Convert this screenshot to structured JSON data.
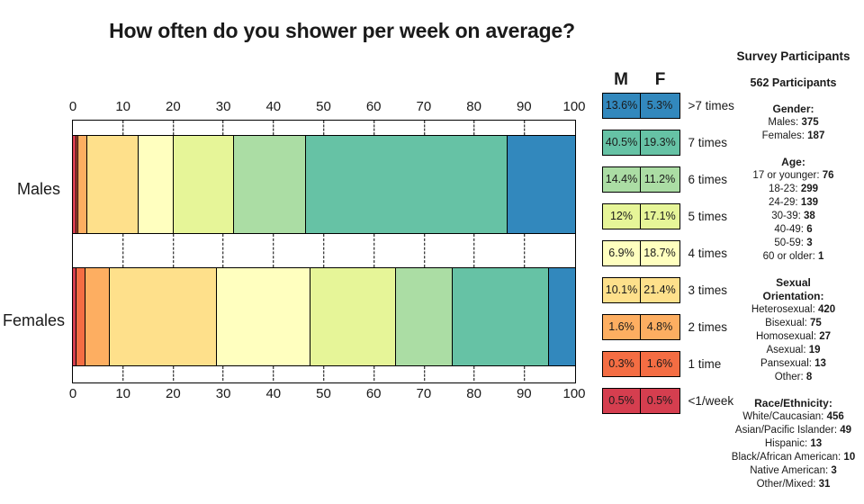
{
  "chart_data": {
    "type": "bar",
    "stacked": true,
    "orientation": "horizontal",
    "title": "How often do you shower per week on average?",
    "categories": [
      "Males",
      "Females"
    ],
    "x_ticks": [
      0,
      10,
      20,
      30,
      40,
      50,
      60,
      70,
      80,
      90,
      100
    ],
    "xlim": [
      0,
      100
    ],
    "grid": "dashed vertical in axis strips",
    "legend_position": "right",
    "legend_columns": [
      "M",
      "F"
    ],
    "series": [
      {
        "name": "<1/week",
        "color": "#D53E4F",
        "values": [
          0.5,
          0.5
        ],
        "display": [
          "0.5%",
          "0.5%"
        ]
      },
      {
        "name": "1 time",
        "color": "#F46D43",
        "values": [
          0.3,
          1.6
        ],
        "display": [
          "0.3%",
          "1.6%"
        ]
      },
      {
        "name": "2 times",
        "color": "#FDAE61",
        "values": [
          1.6,
          4.8
        ],
        "display": [
          "1.6%",
          "4.8%"
        ]
      },
      {
        "name": "3 times",
        "color": "#FEE08B",
        "values": [
          10.1,
          21.4
        ],
        "display": [
          "10.1%",
          "21.4%"
        ]
      },
      {
        "name": "4 times",
        "color": "#FFFFBF",
        "values": [
          6.9,
          18.7
        ],
        "display": [
          "6.9%",
          "18.7%"
        ]
      },
      {
        "name": "5 times",
        "color": "#E6F598",
        "values": [
          12,
          17.1
        ],
        "display": [
          "12%",
          "17.1%"
        ]
      },
      {
        "name": "6 times",
        "color": "#ABDDA4",
        "values": [
          14.4,
          11.2
        ],
        "display": [
          "14.4%",
          "11.2%"
        ]
      },
      {
        "name": "7 times",
        "color": "#66C2A5",
        "values": [
          40.5,
          19.3
        ],
        "display": [
          "40.5%",
          "19.3%"
        ]
      },
      {
        "name": ">7 times",
        "color": "#3288BD",
        "values": [
          13.6,
          5.3
        ],
        "display": [
          "13.6%",
          "5.3%"
        ]
      }
    ]
  },
  "participants_panel": {
    "title": "Survey Participants",
    "total": "562 Participants",
    "sections": [
      {
        "heading": "Gender:",
        "lines": [
          {
            "label": "Males:",
            "value": "375"
          },
          {
            "label": "Females:",
            "value": "187"
          }
        ]
      },
      {
        "heading": "Age:",
        "lines": [
          {
            "label": "17 or younger:",
            "value": "76"
          },
          {
            "label": "18-23:",
            "value": "299"
          },
          {
            "label": "24-29:",
            "value": "139"
          },
          {
            "label": "30-39:",
            "value": "38"
          },
          {
            "label": "40-49:",
            "value": "6"
          },
          {
            "label": "50-59:",
            "value": "3"
          },
          {
            "label": "60 or older:",
            "value": "1"
          }
        ]
      },
      {
        "heading": "Sexual Orientation:",
        "lines": [
          {
            "label": "Heterosexual:",
            "value": "420"
          },
          {
            "label": "Bisexual:",
            "value": "75"
          },
          {
            "label": "Homosexual:",
            "value": "27"
          },
          {
            "label": "Asexual:",
            "value": "19"
          },
          {
            "label": "Pansexual:",
            "value": "13"
          },
          {
            "label": "Other:",
            "value": "8"
          }
        ]
      },
      {
        "heading": "Race/Ethnicity:",
        "lines": [
          {
            "label": "White/Caucasian:",
            "value": "456"
          },
          {
            "label": "Asian/Pacific Islander:",
            "value": "49"
          },
          {
            "label": "Hispanic:",
            "value": "13"
          },
          {
            "label": "Black/African American:",
            "value": "10"
          },
          {
            "label": "Native American:",
            "value": "3"
          },
          {
            "label": "Other/Mixed:",
            "value": "31"
          }
        ]
      }
    ]
  }
}
